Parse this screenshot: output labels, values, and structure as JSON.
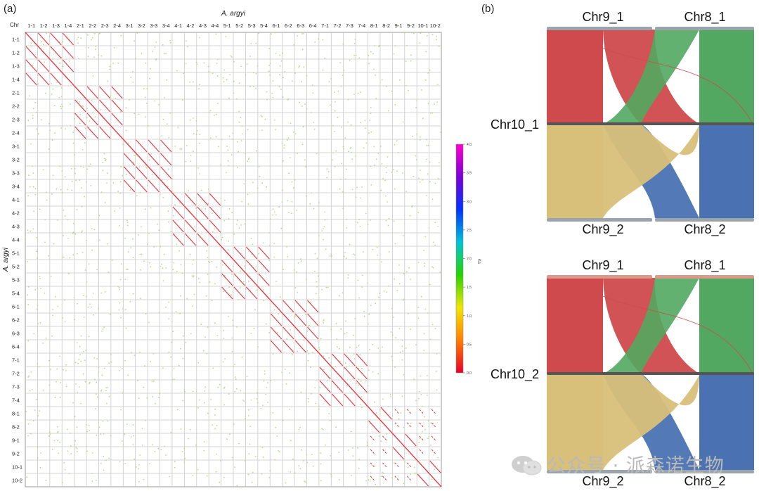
{
  "panel_labels": [
    "(a)",
    "(b)"
  ],
  "watermark": {
    "text": "公众号 · 派森诺生物",
    "icon": "wechat-icon"
  },
  "chart_data": [
    {
      "type": "heatmap",
      "title": "A. argyi",
      "ylabel": "A. argyi",
      "corner_label": "Chr",
      "chromosomes": [
        "1-1",
        "1-2",
        "1-3",
        "1-4",
        "2-1",
        "2-2",
        "2-3",
        "2-4",
        "3-1",
        "3-2",
        "3-3",
        "3-4",
        "4-1",
        "4-2",
        "4-3",
        "4-4",
        "5-1",
        "5-2",
        "5-3",
        "5-4",
        "6-1",
        "6-2",
        "6-3",
        "6-4",
        "7-1",
        "7-2",
        "7-3",
        "7-4",
        "8-1",
        "8-2",
        "9-1",
        "9-2",
        "10-1",
        "10-2"
      ],
      "group_blocks": [
        [
          0,
          4
        ],
        [
          4,
          8
        ],
        [
          8,
          12
        ],
        [
          12,
          16
        ],
        [
          16,
          20
        ],
        [
          20,
          24
        ],
        [
          24,
          28
        ],
        [
          28,
          30
        ],
        [
          30,
          32
        ],
        [
          32,
          34
        ]
      ],
      "colorbar": {
        "label": "Ks",
        "range": [
          0,
          4.0
        ],
        "ticks": [
          "0.0",
          "0.5",
          "1.0",
          "1.5",
          "2.0",
          "2.5",
          "3.0",
          "3.5",
          "4.0"
        ],
        "colors": [
          "#e8002a",
          "#ff7f00",
          "#f2e600",
          "#25d400",
          "#00c4d6",
          "#0033ff",
          "#7a00d6",
          "#ff00cc"
        ]
      },
      "colors": {
        "grid": "#c8c8c8",
        "syntenic": "#e8313b",
        "background_dots": "#b8d88a"
      }
    },
    {
      "type": "chord",
      "panels": [
        {
          "center_label": "Chr10_1",
          "top_labels": [
            "Chr9_1",
            "Chr8_1"
          ],
          "bottom_labels": [
            "Chr9_2",
            "Chr8_2"
          ],
          "colors": {
            "red": "#cf4a4d",
            "green": "#52a860",
            "yellow": "#d8c07a",
            "blue": "#4a72b3",
            "bar": "#9aa4ad"
          }
        },
        {
          "center_label": "Chr10_2",
          "top_labels": [
            "Chr9_1",
            "Chr8_1"
          ],
          "bottom_labels": [
            "Chr9_2",
            "Chr8_2"
          ],
          "colors": {
            "red": "#cf4a4d",
            "green": "#52a860",
            "yellow": "#d8c07a",
            "blue": "#4a72b3",
            "bar": "#9aa4ad",
            "bar_top": "#d99a8a"
          }
        }
      ]
    }
  ]
}
